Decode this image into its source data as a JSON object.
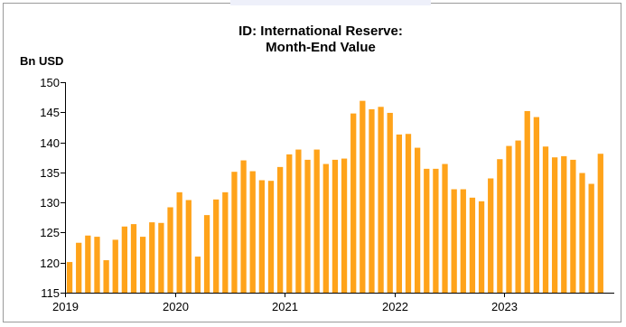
{
  "chart_data": {
    "type": "bar",
    "title_lines": [
      "ID: International Reserve:",
      "Month-End Value"
    ],
    "ylabel": "Bn USD",
    "xlabel": "",
    "ylim": [
      115,
      150
    ],
    "yticks": [
      115,
      120,
      125,
      130,
      135,
      140,
      145,
      150
    ],
    "xticks": [
      "2019",
      "2020",
      "2021",
      "2022",
      "2023"
    ],
    "grid": false,
    "bar_color": "#FFA31A",
    "categories": [
      "2019-01",
      "2019-02",
      "2019-03",
      "2019-04",
      "2019-05",
      "2019-06",
      "2019-07",
      "2019-08",
      "2019-09",
      "2019-10",
      "2019-11",
      "2019-12",
      "2020-01",
      "2020-02",
      "2020-03",
      "2020-04",
      "2020-05",
      "2020-06",
      "2020-07",
      "2020-08",
      "2020-09",
      "2020-10",
      "2020-11",
      "2020-12",
      "2021-01",
      "2021-02",
      "2021-03",
      "2021-04",
      "2021-05",
      "2021-06",
      "2021-07",
      "2021-08",
      "2021-09",
      "2021-10",
      "2021-11",
      "2021-12",
      "2022-01",
      "2022-02",
      "2022-03",
      "2022-04",
      "2022-05",
      "2022-06",
      "2022-07",
      "2022-08",
      "2022-09",
      "2022-10",
      "2022-11",
      "2022-12",
      "2023-01",
      "2023-02",
      "2023-03",
      "2023-04",
      "2023-05",
      "2023-06",
      "2023-07",
      "2023-08",
      "2023-09",
      "2023-10",
      "2023-11"
    ],
    "values": [
      120.1,
      123.3,
      124.5,
      124.3,
      120.4,
      123.8,
      126.0,
      126.4,
      124.3,
      126.7,
      126.6,
      129.2,
      131.7,
      130.4,
      121.0,
      127.9,
      130.5,
      131.7,
      135.1,
      137.0,
      135.2,
      133.7,
      133.6,
      135.9,
      138.0,
      138.8,
      137.1,
      138.8,
      136.4,
      137.1,
      137.3,
      144.8,
      146.9,
      145.5,
      145.9,
      144.9,
      141.3,
      141.4,
      139.1,
      135.6,
      135.6,
      136.4,
      132.2,
      132.2,
      130.8,
      130.2,
      134.0,
      137.2,
      139.4,
      140.3,
      145.2,
      144.2,
      139.3,
      137.5,
      137.7,
      137.1,
      134.9,
      133.1,
      138.1
    ]
  }
}
